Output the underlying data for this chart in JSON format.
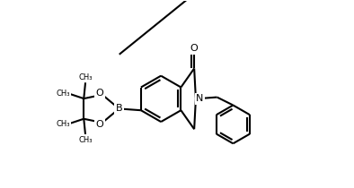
{
  "background_color": "#ffffff",
  "line_color": "#000000",
  "line_width": 1.5,
  "figsize": [
    3.94,
    2.1
  ],
  "dpi": 100,
  "xlim": [
    0,
    11
  ],
  "ylim": [
    0,
    5.8
  ]
}
